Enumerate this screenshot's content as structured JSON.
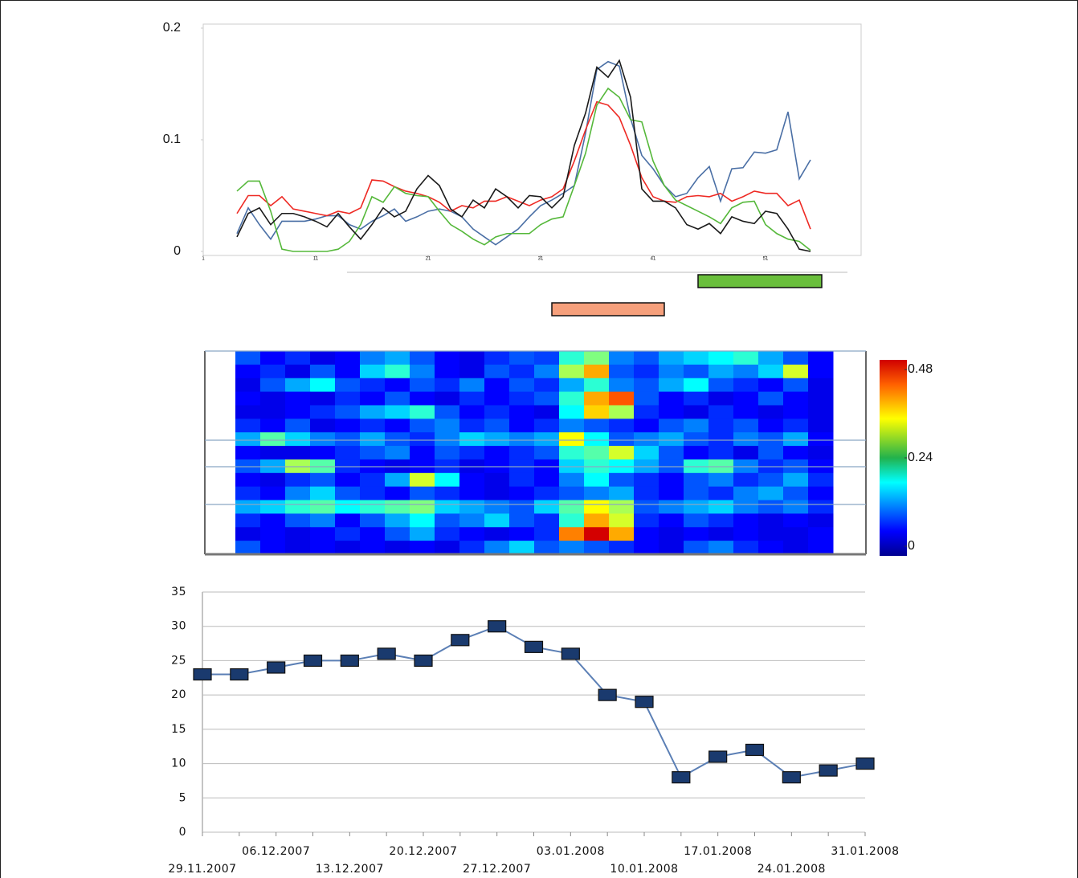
{
  "chart_data": [
    {
      "type": "line",
      "xlim": [
        1,
        59.5
      ],
      "ylim": [
        0,
        0.2
      ],
      "yticks": [
        0,
        0.1,
        0.2
      ],
      "xticks": [
        1,
        11,
        21,
        31,
        41,
        51
      ],
      "x": [
        4,
        5,
        6,
        7,
        8,
        9,
        10,
        11,
        12,
        13,
        14,
        15,
        16,
        17,
        18,
        19,
        20,
        21,
        22,
        23,
        24,
        25,
        26,
        27,
        28,
        29,
        30,
        31,
        32,
        33,
        34,
        35,
        36,
        37,
        38,
        39,
        40,
        41,
        42,
        43,
        44,
        45,
        46,
        47,
        48,
        49,
        50,
        51,
        52,
        53,
        54,
        55
      ],
      "series": [
        {
          "color": "#4a6fa5",
          "values": [
            0.016,
            0.039,
            0.024,
            0.011,
            0.027,
            0.027,
            0.027,
            0.029,
            0.032,
            0.032,
            0.024,
            0.02,
            0.027,
            0.032,
            0.038,
            0.027,
            0.031,
            0.036,
            0.038,
            0.036,
            0.031,
            0.02,
            0.013,
            0.006,
            0.013,
            0.02,
            0.031,
            0.041,
            0.046,
            0.052,
            0.059,
            0.106,
            0.163,
            0.17,
            0.166,
            0.119,
            0.086,
            0.074,
            0.059,
            0.049,
            0.052,
            0.066,
            0.076,
            0.045,
            0.074,
            0.075,
            0.089,
            0.088,
            0.091,
            0.125,
            0.065,
            0.082
          ]
        },
        {
          "color": "#ee2a24",
          "values": [
            0.034,
            0.05,
            0.05,
            0.041,
            0.049,
            0.038,
            0.036,
            0.034,
            0.032,
            0.036,
            0.034,
            0.039,
            0.064,
            0.063,
            0.058,
            0.054,
            0.052,
            0.049,
            0.044,
            0.036,
            0.041,
            0.039,
            0.045,
            0.045,
            0.049,
            0.045,
            0.041,
            0.046,
            0.049,
            0.056,
            0.081,
            0.109,
            0.134,
            0.131,
            0.12,
            0.095,
            0.066,
            0.049,
            0.045,
            0.044,
            0.049,
            0.05,
            0.049,
            0.052,
            0.045,
            0.049,
            0.054,
            0.052,
            0.052,
            0.041,
            0.046,
            0.02
          ]
        },
        {
          "color": "#55b83a",
          "values": [
            0.054,
            0.063,
            0.063,
            0.036,
            0.002,
            0,
            0,
            0,
            0,
            0.002,
            0.009,
            0.024,
            0.049,
            0.044,
            0.058,
            0.052,
            0.05,
            0.049,
            0.036,
            0.024,
            0.018,
            0.011,
            0.006,
            0.013,
            0.016,
            0.016,
            0.016,
            0.024,
            0.029,
            0.031,
            0.059,
            0.088,
            0.131,
            0.146,
            0.138,
            0.118,
            0.116,
            0.081,
            0.059,
            0.046,
            0.041,
            0.036,
            0.031,
            0.025,
            0.039,
            0.044,
            0.045,
            0.024,
            0.016,
            0.011,
            0.009,
            0.001
          ]
        },
        {
          "color": "#1a1a1a",
          "values": [
            0.013,
            0.034,
            0.039,
            0.024,
            0.034,
            0.034,
            0.031,
            0.027,
            0.022,
            0.034,
            0.022,
            0.011,
            0.024,
            0.039,
            0.031,
            0.036,
            0.056,
            0.068,
            0.059,
            0.038,
            0.031,
            0.046,
            0.039,
            0.056,
            0.049,
            0.039,
            0.05,
            0.049,
            0.039,
            0.049,
            0.095,
            0.124,
            0.165,
            0.156,
            0.171,
            0.138,
            0.056,
            0.045,
            0.045,
            0.039,
            0.024,
            0.02,
            0.025,
            0.016,
            0.031,
            0.027,
            0.025,
            0.036,
            0.034,
            0.02,
            0.002,
            0
          ]
        }
      ],
      "periods": [
        {
          "start": 45,
          "end": 56,
          "color": "#6abf3c"
        },
        {
          "start": 32,
          "end": 42,
          "color": "#f6a07c"
        }
      ]
    },
    {
      "type": "heatmap",
      "clim": [
        0,
        0.48
      ],
      "cticks": [
        0,
        0.24,
        0.48
      ],
      "values": [
        [
          0.1,
          0.06,
          0.08,
          0.05,
          0.06,
          0.12,
          0.14,
          0.1,
          0.06,
          0.05,
          0.08,
          0.1,
          0.09,
          0.2,
          0.24,
          0.12,
          0.1,
          0.14,
          0.16,
          0.18,
          0.2,
          0.14,
          0.1,
          0.06
        ],
        [
          0.06,
          0.08,
          0.05,
          0.1,
          0.06,
          0.16,
          0.2,
          0.12,
          0.06,
          0.05,
          0.1,
          0.08,
          0.12,
          0.26,
          0.34,
          0.1,
          0.08,
          0.12,
          0.1,
          0.14,
          0.12,
          0.16,
          0.28,
          0.06
        ],
        [
          0.05,
          0.1,
          0.14,
          0.18,
          0.1,
          0.08,
          0.06,
          0.1,
          0.08,
          0.12,
          0.06,
          0.1,
          0.08,
          0.14,
          0.2,
          0.12,
          0.1,
          0.14,
          0.18,
          0.1,
          0.08,
          0.06,
          0.1,
          0.05
        ],
        [
          0.06,
          0.05,
          0.06,
          0.05,
          0.08,
          0.06,
          0.1,
          0.06,
          0.05,
          0.08,
          0.06,
          0.08,
          0.1,
          0.2,
          0.34,
          0.38,
          0.1,
          0.06,
          0.08,
          0.05,
          0.06,
          0.1,
          0.06,
          0.05
        ],
        [
          0.05,
          0.05,
          0.06,
          0.08,
          0.1,
          0.14,
          0.16,
          0.2,
          0.1,
          0.06,
          0.08,
          0.06,
          0.05,
          0.18,
          0.32,
          0.26,
          0.08,
          0.06,
          0.05,
          0.08,
          0.06,
          0.05,
          0.06,
          0.05
        ],
        [
          0.08,
          0.06,
          0.1,
          0.05,
          0.06,
          0.08,
          0.06,
          0.1,
          0.12,
          0.08,
          0.1,
          0.06,
          0.08,
          0.12,
          0.1,
          0.08,
          0.06,
          0.1,
          0.12,
          0.08,
          0.1,
          0.06,
          0.08,
          0.05
        ],
        [
          0.14,
          0.22,
          0.16,
          0.12,
          0.1,
          0.14,
          0.1,
          0.08,
          0.12,
          0.16,
          0.14,
          0.12,
          0.14,
          0.3,
          0.18,
          0.1,
          0.12,
          0.14,
          0.1,
          0.08,
          0.12,
          0.1,
          0.14,
          0.06
        ],
        [
          0.06,
          0.05,
          0.05,
          0.06,
          0.08,
          0.1,
          0.12,
          0.06,
          0.1,
          0.08,
          0.06,
          0.08,
          0.1,
          0.2,
          0.22,
          0.28,
          0.16,
          0.1,
          0.06,
          0.08,
          0.05,
          0.1,
          0.06,
          0.05
        ],
        [
          0.1,
          0.14,
          0.26,
          0.22,
          0.08,
          0.06,
          0.05,
          0.06,
          0.08,
          0.05,
          0.06,
          0.08,
          0.06,
          0.16,
          0.2,
          0.18,
          0.14,
          0.1,
          0.2,
          0.22,
          0.12,
          0.08,
          0.1,
          0.06
        ],
        [
          0.06,
          0.05,
          0.08,
          0.1,
          0.06,
          0.08,
          0.14,
          0.28,
          0.18,
          0.06,
          0.05,
          0.08,
          0.06,
          0.12,
          0.18,
          0.1,
          0.08,
          0.06,
          0.1,
          0.12,
          0.08,
          0.1,
          0.14,
          0.08
        ],
        [
          0.08,
          0.06,
          0.12,
          0.16,
          0.1,
          0.08,
          0.06,
          0.1,
          0.08,
          0.06,
          0.05,
          0.06,
          0.08,
          0.1,
          0.12,
          0.14,
          0.08,
          0.06,
          0.1,
          0.08,
          0.12,
          0.14,
          0.1,
          0.06
        ],
        [
          0.14,
          0.16,
          0.2,
          0.22,
          0.18,
          0.2,
          0.22,
          0.24,
          0.16,
          0.14,
          0.12,
          0.1,
          0.16,
          0.22,
          0.3,
          0.26,
          0.1,
          0.12,
          0.14,
          0.16,
          0.12,
          0.1,
          0.12,
          0.08
        ],
        [
          0.08,
          0.06,
          0.1,
          0.12,
          0.06,
          0.1,
          0.14,
          0.18,
          0.1,
          0.12,
          0.16,
          0.1,
          0.08,
          0.2,
          0.34,
          0.28,
          0.08,
          0.06,
          0.1,
          0.08,
          0.06,
          0.05,
          0.06,
          0.05
        ],
        [
          0.05,
          0.06,
          0.05,
          0.06,
          0.08,
          0.06,
          0.1,
          0.14,
          0.08,
          0.06,
          0.05,
          0.06,
          0.08,
          0.36,
          0.44,
          0.34,
          0.06,
          0.05,
          0.06,
          0.05,
          0.06,
          0.05,
          0.05,
          0.06
        ],
        [
          0.1,
          0.06,
          0.05,
          0.06,
          0.05,
          0.06,
          0.05,
          0.06,
          0.05,
          0.08,
          0.12,
          0.16,
          0.1,
          0.12,
          0.1,
          0.08,
          0.06,
          0.05,
          0.1,
          0.12,
          0.08,
          0.06,
          0.05,
          0.06
        ]
      ]
    },
    {
      "type": "line",
      "color": "#1a3a6e",
      "line_color": "#5b7fb5",
      "grid": true,
      "ylim": [
        0,
        35
      ],
      "yticks": [
        0,
        5,
        10,
        15,
        20,
        25,
        30,
        35
      ],
      "categories": [
        "29.11.2007",
        null,
        "06.12.2007",
        null,
        "13.12.2007",
        null,
        "20.12.2007",
        null,
        "27.12.2007",
        null,
        "03.01.2008",
        null,
        "10.01.2008",
        null,
        "17.01.2008",
        null,
        "24.01.2008",
        null,
        "31.01.2008"
      ],
      "values": [
        23,
        23,
        24,
        25,
        25,
        26,
        25,
        28,
        30,
        27,
        26,
        20,
        19,
        8,
        11,
        12,
        8,
        9,
        10
      ]
    }
  ]
}
